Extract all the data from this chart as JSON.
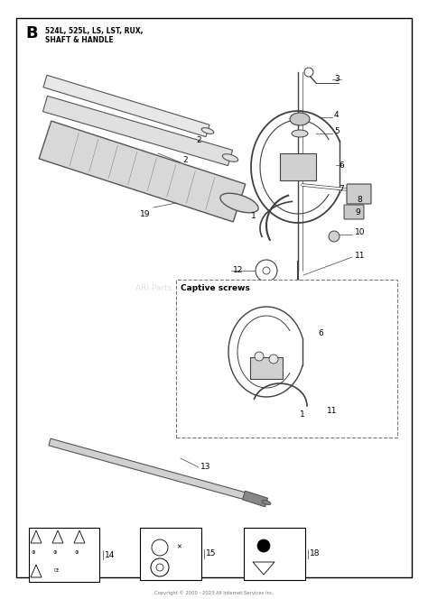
{
  "title_letter": "B",
  "title_line1": "524L, 525L, LS, LST, RUX,",
  "title_line2": "SHAFT & HANDLE",
  "bg_color": "#ffffff",
  "border_color": "#000000",
  "line_color": "#404040",
  "footer_text": "Copyright © 2000 - 2023 All Internet Services Inc.",
  "captive_screws_label": "Captive screws",
  "watermark": "ARI Parts",
  "shaft_color": "#c8c8c8",
  "shaft_edge": "#555555",
  "handle_color": "#606060"
}
